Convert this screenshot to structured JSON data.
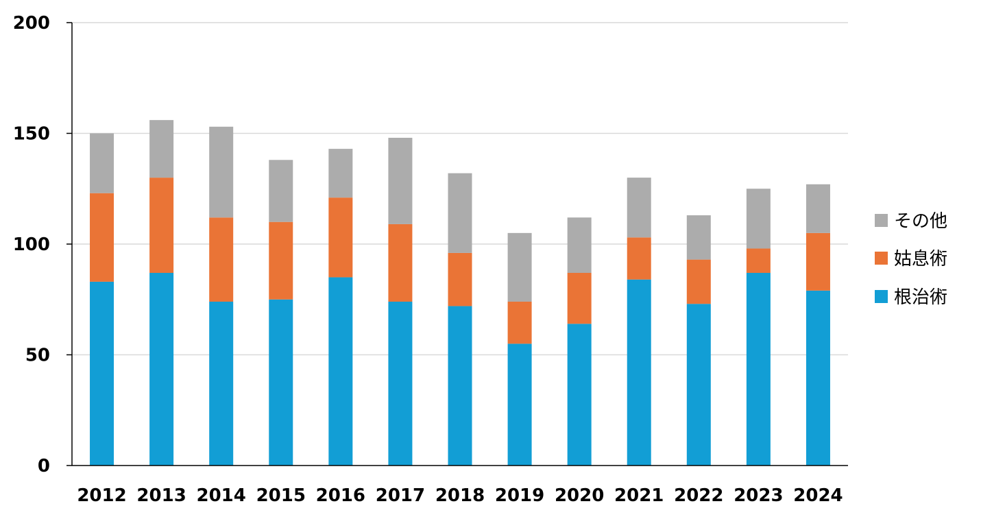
{
  "chart_data": {
    "type": "bar",
    "stacked": true,
    "categories": [
      "2012",
      "2013",
      "2014",
      "2015",
      "2016",
      "2017",
      "2018",
      "2019",
      "2020",
      "2021",
      "2022",
      "2023",
      "2024"
    ],
    "series": [
      {
        "name": "根治術",
        "color": "#129ED5",
        "values": [
          83,
          87,
          74,
          75,
          85,
          74,
          72,
          55,
          64,
          84,
          73,
          87,
          79
        ]
      },
      {
        "name": "姑息術",
        "color": "#EA7436",
        "values": [
          40,
          43,
          38,
          35,
          36,
          35,
          24,
          19,
          23,
          19,
          20,
          11,
          26
        ]
      },
      {
        "name": "その他",
        "color": "#ACACAC",
        "values": [
          27,
          26,
          41,
          28,
          22,
          39,
          36,
          31,
          25,
          27,
          20,
          27,
          22
        ]
      }
    ],
    "ylim": [
      0,
      200
    ],
    "yticks": [
      "0",
      "50",
      "100",
      "150",
      "200"
    ],
    "ytick_values": [
      0,
      50,
      100,
      150,
      200
    ],
    "legend": {
      "position": "right",
      "order": [
        "その他",
        "姑息術",
        "根治術"
      ]
    },
    "grid": "horizontal",
    "xlabel": "",
    "ylabel": "",
    "title": ""
  }
}
